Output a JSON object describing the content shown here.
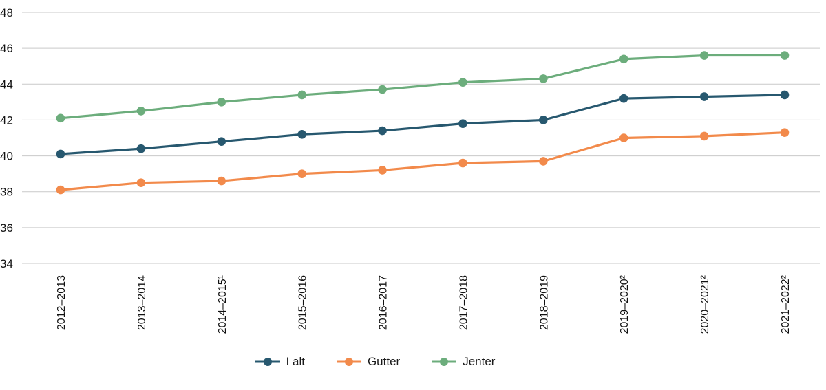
{
  "chart_data": {
    "type": "line",
    "title": "",
    "xlabel": "",
    "ylabel": "",
    "categories": [
      "2012–2013",
      "2013–2014",
      "2014–2015¹",
      "2015–2016",
      "2016–2017",
      "2017–2018",
      "2018–2019",
      "2019–2020²",
      "2020–2021²",
      "2021–2022²"
    ],
    "series": [
      {
        "name": "I alt",
        "color": "#27586f",
        "values": [
          40.1,
          40.4,
          40.8,
          41.2,
          41.4,
          41.8,
          42.0,
          43.2,
          43.3,
          43.4
        ]
      },
      {
        "name": "Gutter",
        "color": "#f28a4b",
        "values": [
          38.1,
          38.5,
          38.6,
          39.0,
          39.2,
          39.6,
          39.7,
          41.0,
          41.1,
          41.3
        ]
      },
      {
        "name": "Jenter",
        "color": "#6cad7c",
        "values": [
          42.1,
          42.5,
          43.0,
          43.4,
          43.7,
          44.1,
          44.3,
          45.4,
          45.6,
          45.6
        ]
      }
    ],
    "ylim": [
      34,
      48
    ],
    "yticks": [
      48,
      46,
      44,
      42,
      40,
      38,
      36,
      34
    ],
    "grid": true,
    "gridline_color": "#c9c9c9",
    "text_color": "#111111",
    "legend_position": "bottom"
  }
}
